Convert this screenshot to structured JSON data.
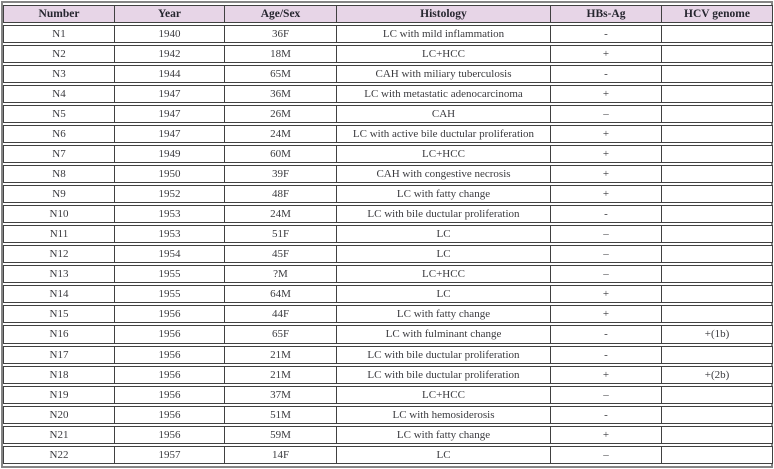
{
  "table": {
    "columns": [
      {
        "key": "number",
        "label": "Number"
      },
      {
        "key": "year",
        "label": "Year"
      },
      {
        "key": "age_sex",
        "label": "Age/Sex"
      },
      {
        "key": "histology",
        "label": "Histology"
      },
      {
        "key": "hbs_ag",
        "label": "HBs-Ag"
      },
      {
        "key": "hcv_genome",
        "label": "HCV genome"
      }
    ],
    "rows": [
      [
        "N1",
        "1940",
        "36F",
        "LC with mild inflammation",
        "-",
        ""
      ],
      [
        "N2",
        "1942",
        "18M",
        "LC+HCC",
        "+",
        ""
      ],
      [
        "N3",
        "1944",
        "65M",
        "CAH with miliary tuberculosis",
        "-",
        ""
      ],
      [
        "N4",
        "1947",
        "36M",
        "LC with metastatic adenocarcinoma",
        "+",
        ""
      ],
      [
        "N5",
        "1947",
        "26M",
        "CAH",
        "–",
        ""
      ],
      [
        "N6",
        "1947",
        "24M",
        "LC with active bile ductular proliferation",
        "+",
        ""
      ],
      [
        "N7",
        "1949",
        "60M",
        "LC+HCC",
        "+",
        ""
      ],
      [
        "N8",
        "1950",
        "39F",
        "CAH with congestive necrosis",
        "+",
        ""
      ],
      [
        "N9",
        "1952",
        "48F",
        "LC with fatty change",
        "+",
        ""
      ],
      [
        "N10",
        "1953",
        "24M",
        "LC with bile ductular proliferation",
        "-",
        ""
      ],
      [
        "N11",
        "1953",
        "51F",
        "LC",
        "–",
        ""
      ],
      [
        "N12",
        "1954",
        "45F",
        "LC",
        "–",
        ""
      ],
      [
        "N13",
        "1955",
        "?M",
        "LC+HCC",
        "–",
        ""
      ],
      [
        "N14",
        "1955",
        "64M",
        "LC",
        "+",
        ""
      ],
      [
        "N15",
        "1956",
        "44F",
        "LC with fatty change",
        "+",
        ""
      ],
      [
        "N16",
        "1956",
        "65F",
        "LC with fulminant change",
        "-",
        "+(1b)"
      ],
      [
        "N17",
        "1956",
        "21M",
        "LC with bile ductular proliferation",
        "-",
        ""
      ],
      [
        "N18",
        "1956",
        "21M",
        "LC with bile ductular proliferation",
        "+",
        "+(2b)"
      ],
      [
        "N19",
        "1956",
        "37M",
        "LC+HCC",
        "–",
        ""
      ],
      [
        "N20",
        "1956",
        "51M",
        "LC with hemosiderosis",
        "-",
        ""
      ],
      [
        "N21",
        "1956",
        "59M",
        "LC with fatty change",
        "+",
        ""
      ],
      [
        "N22",
        "1957",
        "14F",
        "LC",
        "–",
        ""
      ]
    ]
  },
  "colors": {
    "header_bg": "#e7d5e7",
    "header_text": "#26262f",
    "body_text": "#3a3a3e",
    "cell_border": "#414141",
    "outer_border": "#858585"
  }
}
